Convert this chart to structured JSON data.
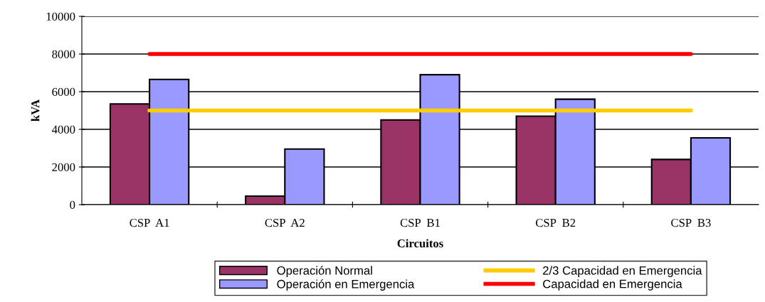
{
  "chart_data": {
    "type": "bar",
    "xlabel": "Circuitos",
    "ylabel": "kVA",
    "categories": [
      "CSP  A1",
      "CSP  A2",
      "CSP  B1",
      "CSP  B2",
      "CSP  B3"
    ],
    "series": [
      {
        "name": "Operación Normal",
        "color": "#993366",
        "values": [
          5350,
          450,
          4500,
          4700,
          2400
        ]
      },
      {
        "name": "Operación en Emergencia",
        "color": "#9999ff",
        "values": [
          6650,
          2950,
          6900,
          5600,
          3550
        ]
      },
      {
        "name": "2/3 Capacidad en Emergencia",
        "type": "line",
        "color": "#ffcc00",
        "values": [
          5000,
          5000,
          5000,
          5000,
          5000
        ]
      },
      {
        "name": "Capacidad en Emergencia",
        "type": "line",
        "color": "#ff0000",
        "values": [
          8000,
          8000,
          8000,
          8000,
          8000
        ]
      }
    ],
    "ylim": [
      0,
      10000
    ],
    "yticks": [
      0,
      2000,
      4000,
      6000,
      8000,
      10000
    ],
    "grid": "y",
    "legend": "bottom",
    "marker": "none",
    "line_style": "solid"
  }
}
